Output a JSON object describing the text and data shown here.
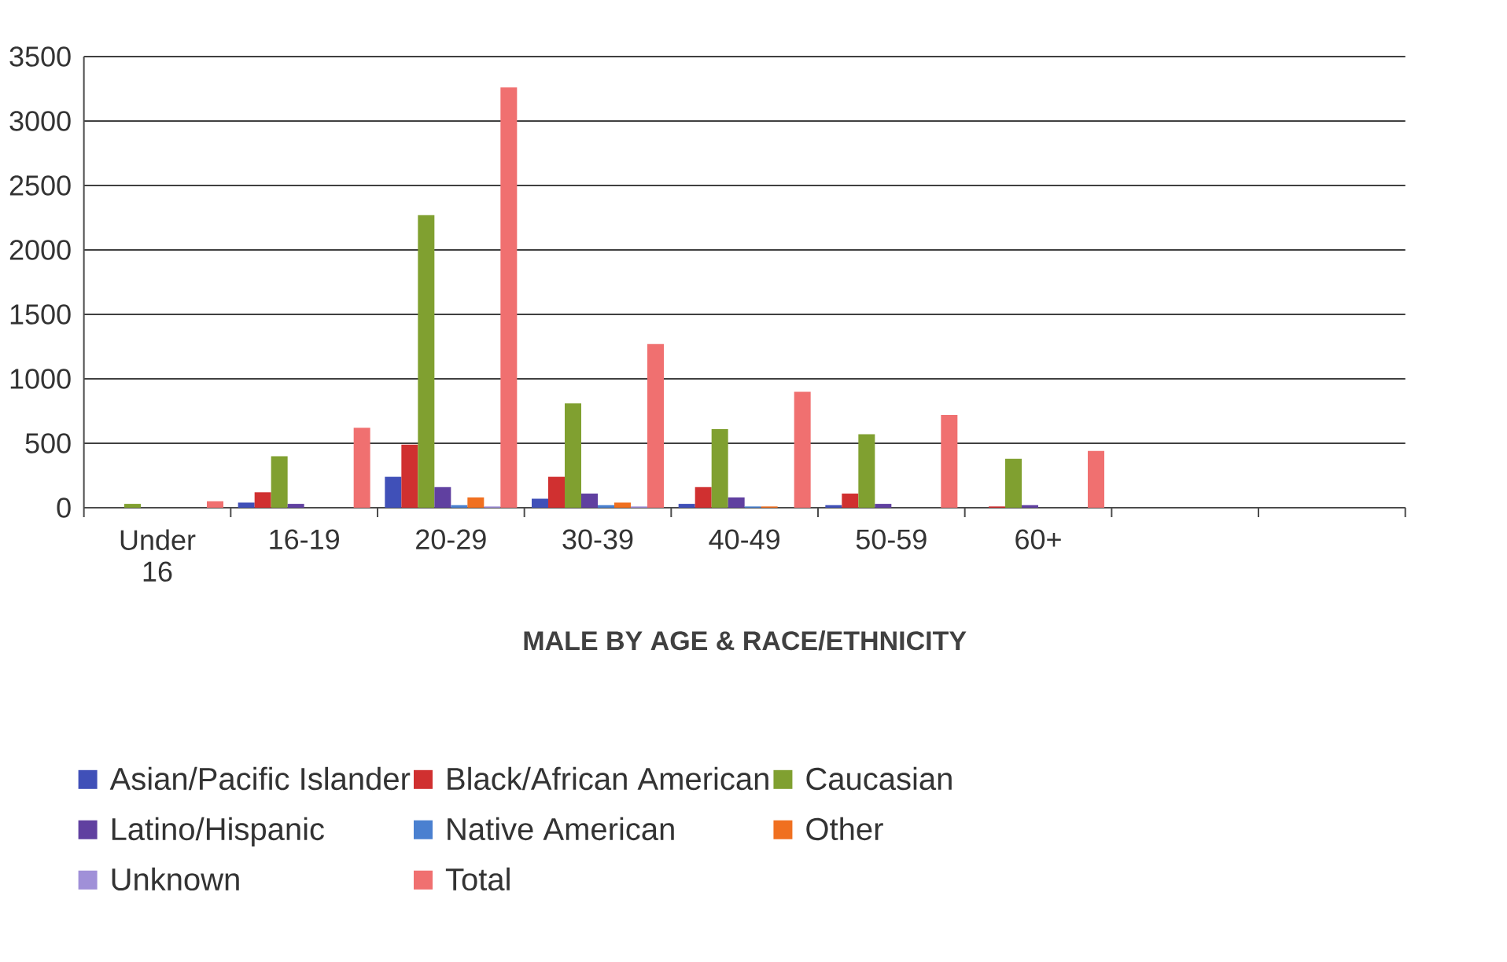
{
  "chart_data": {
    "type": "bar",
    "xlabel": "MALE BY AGE & RACE/ETHNICITY",
    "categories": [
      "Under 16",
      "16-19",
      "20-29",
      "30-39",
      "40-49",
      "50-59",
      "60+",
      null,
      null
    ],
    "series": [
      {
        "name": "Asian/Pacific Islander",
        "color": "#4050b8",
        "values": [
          0,
          40,
          240,
          70,
          30,
          20,
          0,
          null,
          null
        ]
      },
      {
        "name": "Black/African American",
        "color": "#d03030",
        "values": [
          0,
          120,
          490,
          240,
          160,
          110,
          10,
          null,
          null
        ]
      },
      {
        "name": "Caucasian",
        "color": "#80a030",
        "values": [
          30,
          400,
          2270,
          810,
          610,
          570,
          380,
          null,
          null
        ]
      },
      {
        "name": "Latino/Hispanic",
        "color": "#6040a0",
        "values": [
          0,
          30,
          160,
          110,
          80,
          30,
          20,
          null,
          null
        ]
      },
      {
        "name": "Native American",
        "color": "#4a80d0",
        "values": [
          0,
          0,
          20,
          20,
          10,
          0,
          0,
          null,
          null
        ]
      },
      {
        "name": "Other",
        "color": "#f07020",
        "values": [
          0,
          0,
          80,
          40,
          10,
          0,
          0,
          null,
          null
        ]
      },
      {
        "name": "Unknown",
        "color": "#a090d8",
        "values": [
          0,
          0,
          10,
          10,
          0,
          0,
          0,
          null,
          null
        ]
      },
      {
        "name": "Total",
        "color": "#f07070",
        "values": [
          50,
          620,
          3260,
          1270,
          900,
          720,
          440,
          null,
          null
        ]
      }
    ],
    "ylim": [
      0,
      3500
    ],
    "yticks": [
      0,
      500,
      1000,
      1500,
      2000,
      2500,
      3000,
      3500
    ],
    "grid": "y",
    "legend": "bottom"
  }
}
